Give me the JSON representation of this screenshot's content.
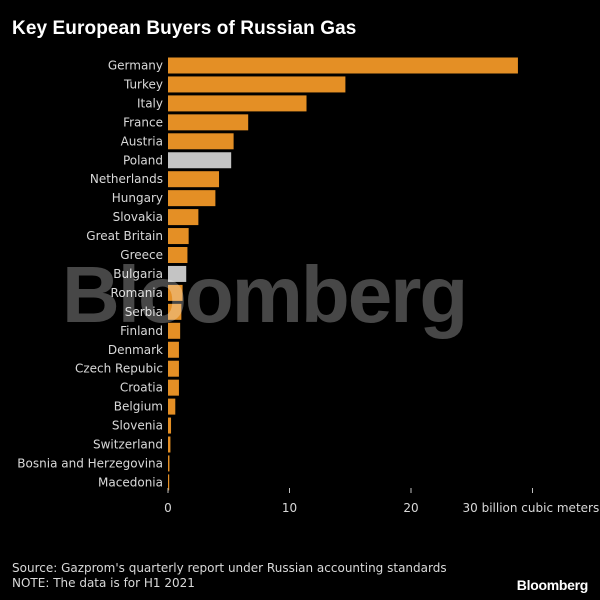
{
  "chart_data": {
    "type": "bar",
    "orientation": "horizontal",
    "title": "Key European Buyers of Russian Gas",
    "categories": [
      "Germany",
      "Turkey",
      "Italy",
      "France",
      "Austria",
      "Poland",
      "Netherlands",
      "Hungary",
      "Slovakia",
      "Great Britain",
      "Greece",
      "Bulgaria",
      "Romania",
      "Serbia",
      "Finland",
      "Denmark",
      "Czech Repubic",
      "Croatia",
      "Belgium",
      "Slovenia",
      "Switzerland",
      "Bosnia and Herzegovina",
      "Macedonia"
    ],
    "values": [
      28.8,
      14.6,
      11.4,
      6.6,
      5.4,
      5.2,
      4.2,
      3.9,
      2.5,
      1.7,
      1.6,
      1.5,
      1.2,
      1.1,
      1.0,
      0.9,
      0.9,
      0.9,
      0.6,
      0.25,
      0.2,
      0.12,
      0.1
    ],
    "highlight": [
      "Poland",
      "Bulgaria"
    ],
    "xlim": [
      0,
      30
    ],
    "xticks": [
      0,
      10,
      20,
      30
    ],
    "xtick_labels": [
      "0",
      "10",
      "20",
      "30 billion cubic meters"
    ],
    "bar_color": "#e48f25",
    "highlight_color": "#c4c4c4",
    "grid": false,
    "legend": "none"
  },
  "watermark": "Bloomberg",
  "notes": {
    "source": "Source: Gazprom's quarterly report under Russian accounting standards",
    "date": "NOTE: The data is for H1 2021"
  },
  "brand": "Bloomberg"
}
